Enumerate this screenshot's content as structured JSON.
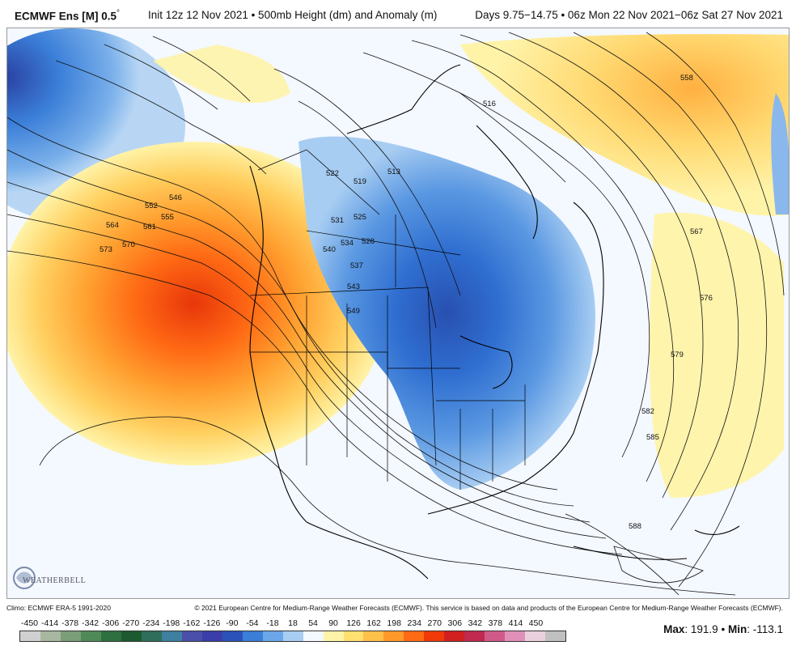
{
  "header": {
    "model": "ECMWF Ens [M] 0.5",
    "degree": "°",
    "init": "Init 12z 12 Nov 2021 • 500mb Height (dm) and Anomaly (m)",
    "valid": "Days 9.75−14.75 • 06z Mon 22 Nov 2021−06z Sat 27 Nov 2021"
  },
  "footer": {
    "climo": "Climo: ECMWF ERA-5 1991-2020",
    "copyright": "© 2021 European Centre for Medium-Range Weather Forecasts (ECMWF). This service is based on data and products of the European Centre for Medium-Range Weather Forecasts (ECMWF)."
  },
  "logo": {
    "text": "WEATHERBELL"
  },
  "colorbar": {
    "ticks": [
      "-450",
      "-414",
      "-378",
      "-342",
      "-306",
      "-270",
      "-234",
      "-198",
      "-162",
      "-126",
      "-90",
      "-54",
      "-18",
      "18",
      "54",
      "90",
      "126",
      "162",
      "198",
      "234",
      "270",
      "306",
      "342",
      "378",
      "414",
      "450"
    ],
    "colors": [
      "#d0d0d0",
      "#a8b8a0",
      "#7a9e78",
      "#4f8a58",
      "#2e7040",
      "#1d5a30",
      "#2f6e5a",
      "#3f7fa0",
      "#4a4fa8",
      "#3b3ea8",
      "#2a52b8",
      "#3a7ed8",
      "#6aa6e8",
      "#a8cdf2",
      "#f4f8ff",
      "#fff3a8",
      "#ffe070",
      "#ffc04a",
      "#ff9a2a",
      "#ff6a14",
      "#f03a0a",
      "#d02020",
      "#c02a50",
      "#d05a8a",
      "#e090b8",
      "#ead0dc",
      "#c0c0c0"
    ]
  },
  "stats": {
    "max_label": "Max",
    "max": "191.9",
    "sep": "•",
    "min_label": "Min",
    "min": "-113.1"
  },
  "contour_labels": [
    "546",
    "552",
    "555",
    "561",
    "564",
    "570",
    "573",
    "522",
    "519",
    "513",
    "531",
    "525",
    "528",
    "534",
    "540",
    "537",
    "543",
    "549",
    "558",
    "516",
    "567",
    "576",
    "579",
    "582",
    "585",
    "588"
  ]
}
